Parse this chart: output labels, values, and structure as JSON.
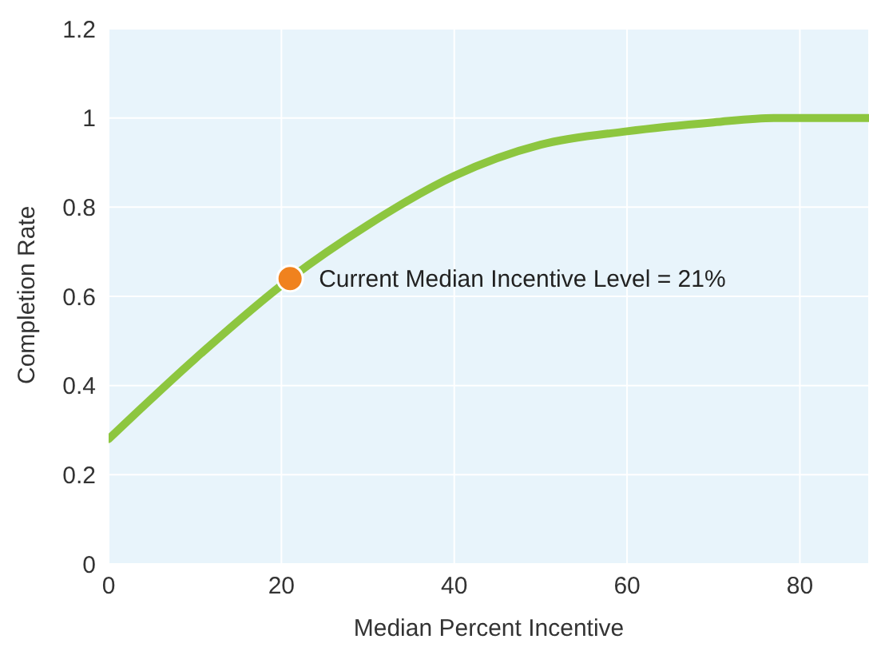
{
  "chart_data": {
    "type": "line",
    "xlabel": "Median Percent Incentive",
    "ylabel": "Completion Rate",
    "xlim": [
      0,
      88
    ],
    "xticks": [
      0,
      20,
      40,
      60,
      80
    ],
    "ylim": [
      0,
      1.2
    ],
    "yticks": [
      0,
      0.2,
      0.4,
      0.6,
      0.8,
      1,
      1.2
    ],
    "grid": true,
    "series": [
      {
        "color": "#8dc63f",
        "x": [
          0,
          10,
          21,
          30,
          40,
          50,
          60,
          70,
          77,
          88
        ],
        "values": [
          0.28,
          0.46,
          0.64,
          0.76,
          0.87,
          0.94,
          0.97,
          0.99,
          1.0,
          1.0
        ]
      },
      {
        "type": "scatter",
        "color": "#f0821e",
        "x": [
          21
        ],
        "values": [
          0.64
        ]
      }
    ],
    "annotations": [
      {
        "text": "Current Median Incentive Level = 21%",
        "x": 21,
        "y": 0.64
      }
    ]
  }
}
